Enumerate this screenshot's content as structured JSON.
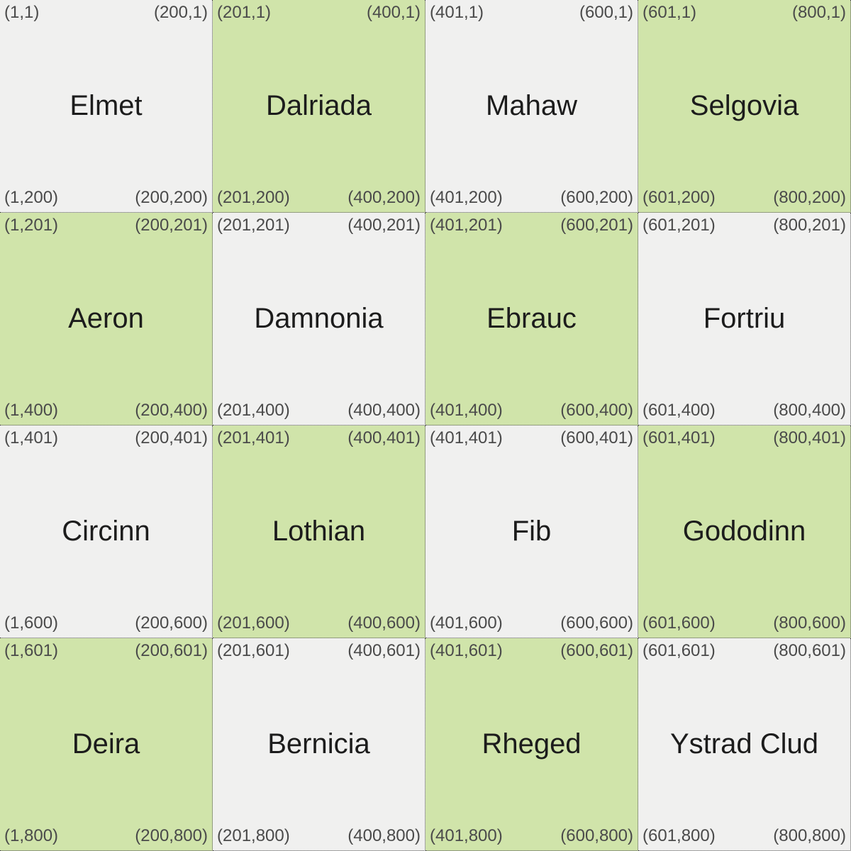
{
  "colors": {
    "light": "#f0f0ef",
    "green": "#d0e4aa",
    "text": "#1c1c1c",
    "coord_text": "#4a4a4a"
  },
  "cells": [
    {
      "name": "Elmet",
      "shade": "light",
      "tl": "(1,1)",
      "tr": "(200,1)",
      "bl": "(1,200)",
      "br": "(200,200)"
    },
    {
      "name": "Dalriada",
      "shade": "green",
      "tl": "(201,1)",
      "tr": "(400,1)",
      "bl": "(201,200)",
      "br": "(400,200)"
    },
    {
      "name": "Mahaw",
      "shade": "light",
      "tl": "(401,1)",
      "tr": "(600,1)",
      "bl": "(401,200)",
      "br": "(600,200)"
    },
    {
      "name": "Selgovia",
      "shade": "green",
      "tl": "(601,1)",
      "tr": "(800,1)",
      "bl": "(601,200)",
      "br": "(800,200)"
    },
    {
      "name": "Aeron",
      "shade": "green",
      "tl": "(1,201)",
      "tr": "(200,201)",
      "bl": "(1,400)",
      "br": "(200,400)"
    },
    {
      "name": "Damnonia",
      "shade": "light",
      "tl": "(201,201)",
      "tr": "(400,201)",
      "bl": "(201,400)",
      "br": "(400,400)"
    },
    {
      "name": "Ebrauc",
      "shade": "green",
      "tl": "(401,201)",
      "tr": "(600,201)",
      "bl": "(401,400)",
      "br": "(600,400)"
    },
    {
      "name": "Fortriu",
      "shade": "light",
      "tl": "(601,201)",
      "tr": "(800,201)",
      "bl": "(601,400)",
      "br": "(800,400)"
    },
    {
      "name": "Circinn",
      "shade": "light",
      "tl": "(1,401)",
      "tr": "(200,401)",
      "bl": "(1,600)",
      "br": "(200,600)"
    },
    {
      "name": "Lothian",
      "shade": "green",
      "tl": "(201,401)",
      "tr": "(400,401)",
      "bl": "(201,600)",
      "br": "(400,600)"
    },
    {
      "name": "Fib",
      "shade": "light",
      "tl": "(401,401)",
      "tr": "(600,401)",
      "bl": "(401,600)",
      "br": "(600,600)"
    },
    {
      "name": "Gododinn",
      "shade": "green",
      "tl": "(601,401)",
      "tr": "(800,401)",
      "bl": "(601,600)",
      "br": "(800,600)"
    },
    {
      "name": "Deira",
      "shade": "green",
      "tl": "(1,601)",
      "tr": "(200,601)",
      "bl": "(1,800)",
      "br": "(200,800)"
    },
    {
      "name": "Bernicia",
      "shade": "light",
      "tl": "(201,601)",
      "tr": "(400,601)",
      "bl": "(201,800)",
      "br": "(400,800)"
    },
    {
      "name": "Rheged",
      "shade": "green",
      "tl": "(401,601)",
      "tr": "(600,601)",
      "bl": "(401,800)",
      "br": "(600,800)"
    },
    {
      "name": "Ystrad Clud",
      "shade": "light",
      "tl": "(601,601)",
      "tr": "(800,601)",
      "bl": "(601,800)",
      "br": "(800,800)"
    }
  ]
}
